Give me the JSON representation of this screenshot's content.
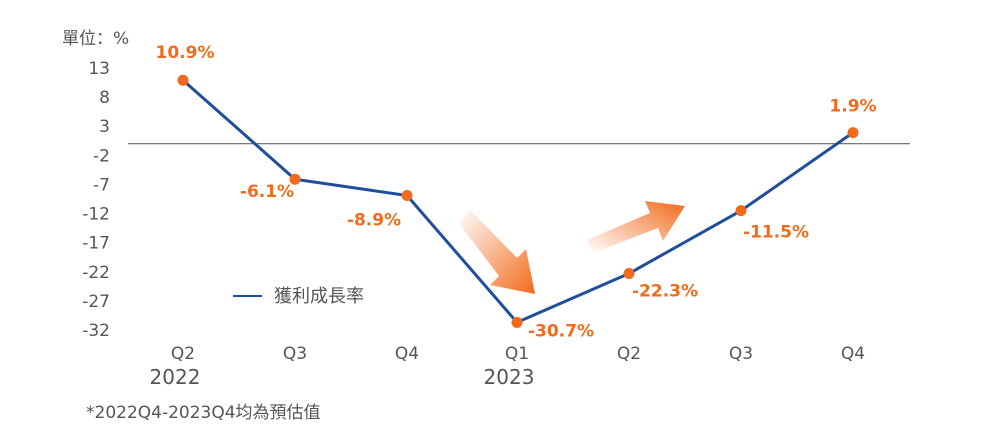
{
  "chart_data": {
    "type": "line",
    "unit_label": "單位：%",
    "categories": [
      "Q2",
      "Q3",
      "Q4",
      "Q1",
      "Q2",
      "Q3",
      "Q4"
    ],
    "year_labels": [
      {
        "label": "2022",
        "category_index": 0
      },
      {
        "label": "2023",
        "category_index": 3
      }
    ],
    "series": [
      {
        "name": "獲利成長率",
        "values": [
          10.9,
          -6.1,
          -8.9,
          -30.7,
          -22.3,
          -11.5,
          1.9
        ],
        "labels": [
          "10.9%",
          "-6.1%",
          "-8.9%",
          "-30.7%",
          "-22.3%",
          "-11.5%",
          "1.9%"
        ]
      }
    ],
    "yticks": [
      13,
      8,
      3,
      -2,
      -7,
      -12,
      -17,
      -22,
      -27,
      -32
    ],
    "ylim": [
      -32,
      13
    ],
    "reference_line": 0,
    "line_color": "#1f4e9c",
    "point_color": "#f26a1b",
    "label_color": "#f26a1b",
    "trend_arrows": [
      "down",
      "up"
    ]
  },
  "footnote": "*2022Q4-2023Q4均為預估值"
}
